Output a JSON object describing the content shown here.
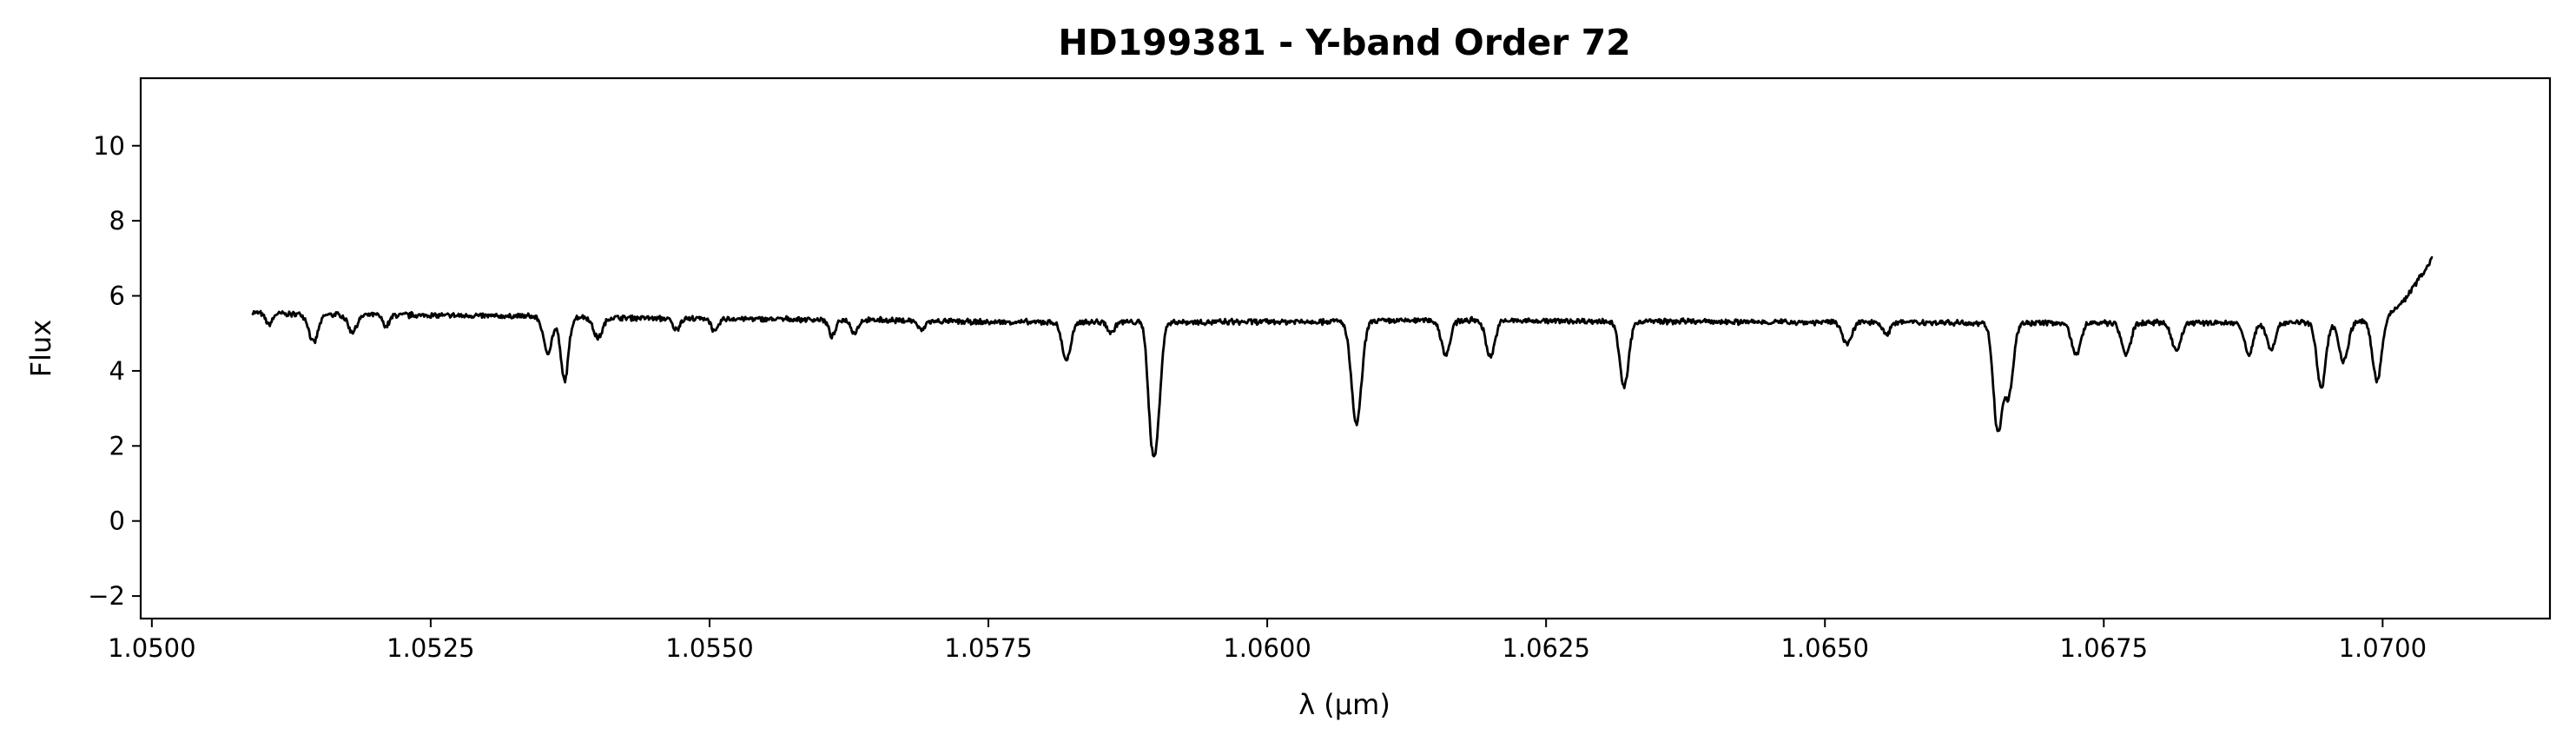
{
  "chart_data": {
    "type": "line",
    "title": "HD199381 - Y-band Order 72",
    "xlabel": "λ (μm)",
    "ylabel": "Flux",
    "xlim": [
      1.0499,
      1.0715
    ],
    "ylim": [
      -2.6,
      11.8
    ],
    "xticks": [
      1.05,
      1.0525,
      1.055,
      1.0575,
      1.06,
      1.0625,
      1.065,
      1.0675,
      1.07
    ],
    "xtick_labels": [
      "1.0500",
      "1.0525",
      "1.0550",
      "1.0575",
      "1.0600",
      "1.0625",
      "1.0650",
      "1.0675",
      "1.0700"
    ],
    "yticks": [
      -2,
      0,
      2,
      4,
      6,
      8,
      10
    ],
    "ytick_labels": [
      "−2",
      "0",
      "2",
      "4",
      "6",
      "8",
      "10"
    ],
    "grid": false,
    "legend": "none",
    "line_color": "#000000",
    "series": [
      {
        "x_start": 1.0509,
        "x_end": 1.07045,
        "continuum": [
          [
            1.0509,
            5.55
          ],
          [
            1.0515,
            5.5
          ],
          [
            1.0525,
            5.48
          ],
          [
            1.0535,
            5.45
          ],
          [
            1.0545,
            5.4
          ],
          [
            1.0555,
            5.38
          ],
          [
            1.0565,
            5.35
          ],
          [
            1.0575,
            5.3
          ],
          [
            1.0585,
            5.3
          ],
          [
            1.0595,
            5.3
          ],
          [
            1.0605,
            5.32
          ],
          [
            1.0615,
            5.35
          ],
          [
            1.0625,
            5.33
          ],
          [
            1.0635,
            5.32
          ],
          [
            1.0645,
            5.3
          ],
          [
            1.0655,
            5.3
          ],
          [
            1.0665,
            5.28
          ],
          [
            1.0675,
            5.28
          ],
          [
            1.0685,
            5.28
          ],
          [
            1.0692,
            5.3
          ],
          [
            1.0697,
            5.3
          ],
          [
            1.07,
            5.35
          ],
          [
            1.0702,
            5.9
          ],
          [
            1.07045,
            7.0
          ]
        ],
        "absorption_lines": [
          [
            1.05105,
            0.3,
            3e-05
          ],
          [
            1.05145,
            0.75,
            4e-05
          ],
          [
            1.0518,
            0.45,
            4e-05
          ],
          [
            1.0521,
            0.3,
            3e-05
          ],
          [
            1.05355,
            0.95,
            4e-05
          ],
          [
            1.0537,
            1.7,
            3.5e-05
          ],
          [
            1.054,
            0.55,
            4e-05
          ],
          [
            1.0547,
            0.3,
            3e-05
          ],
          [
            1.05505,
            0.35,
            3e-05
          ],
          [
            1.0561,
            0.45,
            3e-05
          ],
          [
            1.0563,
            0.35,
            3e-05
          ],
          [
            1.0569,
            0.25,
            3e-05
          ],
          [
            1.0582,
            1.0,
            4e-05
          ],
          [
            1.0586,
            0.3,
            3e-05
          ],
          [
            1.05895,
            1.4,
            3e-05
          ],
          [
            1.059,
            3.1,
            4e-05
          ],
          [
            1.0608,
            2.75,
            4.5e-05
          ],
          [
            1.0616,
            0.9,
            4e-05
          ],
          [
            1.062,
            0.95,
            4e-05
          ],
          [
            1.0632,
            1.75,
            4e-05
          ],
          [
            1.0652,
            0.6,
            4e-05
          ],
          [
            1.06555,
            0.35,
            3e-05
          ],
          [
            1.06655,
            2.85,
            4e-05
          ],
          [
            1.06665,
            1.85,
            4e-05
          ],
          [
            1.06725,
            0.85,
            4e-05
          ],
          [
            1.0677,
            0.85,
            4e-05
          ],
          [
            1.06815,
            0.75,
            4e-05
          ],
          [
            1.0688,
            0.85,
            4e-05
          ],
          [
            1.069,
            0.7,
            4e-05
          ],
          [
            1.06945,
            1.75,
            4e-05
          ],
          [
            1.06965,
            1.05,
            4e-05
          ],
          [
            1.06995,
            1.6,
            4e-05
          ]
        ]
      }
    ]
  }
}
